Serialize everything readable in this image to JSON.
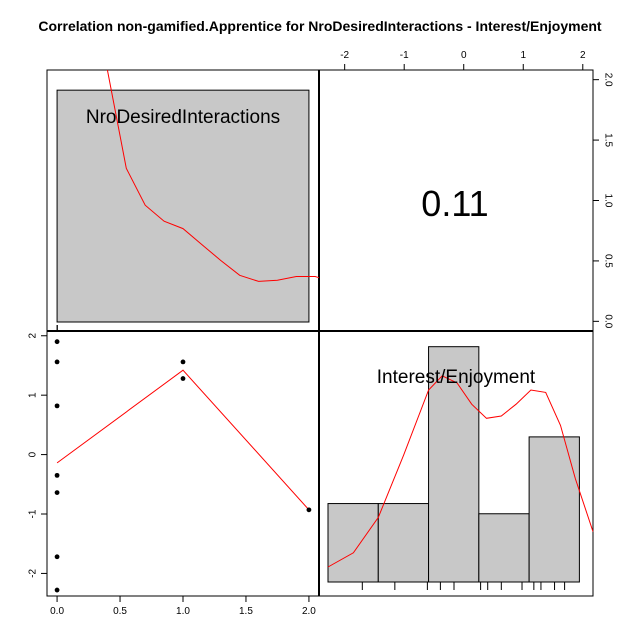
{
  "title": "Correlation non-gamified.Apprentice for NroDesiredInteractions - Interest/Enjoyment",
  "chart_data": {
    "type": "pairs",
    "variables": [
      "NroDesiredInteractions",
      "Interest/Enjoyment"
    ],
    "correlation": "0.11",
    "colors": {
      "bars": "#c8c8c8",
      "curve": "#ff0000",
      "points": "#000000"
    },
    "hist_nro": {
      "breaks": [
        0,
        2
      ],
      "xlim": [
        0,
        2.08
      ],
      "bar_height_fraction": 0.92,
      "density": {
        "x": [
          0.4,
          0.55,
          0.7,
          0.85,
          1.0,
          1.15,
          1.3,
          1.45,
          1.6,
          1.75,
          1.9,
          2.05,
          2.08
        ],
        "y": [
          2.05,
          1.25,
          0.95,
          0.82,
          0.76,
          0.63,
          0.5,
          0.38,
          0.33,
          0.34,
          0.37,
          0.37,
          0.36
        ]
      },
      "density_ylim": [
        0,
        2.05
      ]
    },
    "hist_interest": {
      "breaks": [
        -2.28,
        -1.43,
        -0.58,
        0.27,
        1.12,
        1.97
      ],
      "counts": [
        1,
        1,
        3,
        0.87,
        1.85
      ],
      "ymax": 3.2,
      "density": {
        "x": [
          -2.28,
          -1.85,
          -1.43,
          -1.0,
          -0.58,
          -0.35,
          -0.1,
          0.15,
          0.4,
          0.65,
          0.9,
          1.15,
          1.4,
          1.65,
          1.9,
          2.2
        ],
        "y": [
          0.0,
          0.12,
          0.42,
          0.95,
          1.5,
          1.62,
          1.56,
          1.38,
          1.26,
          1.28,
          1.38,
          1.5,
          1.48,
          1.2,
          0.75,
          0.3
        ]
      },
      "rug": [
        -1.7,
        -1.15,
        -0.6,
        -0.38,
        -0.15,
        0.3,
        0.42,
        0.65,
        1.0,
        1.2,
        1.32,
        1.55,
        1.72
      ],
      "xlim": [
        -2.28,
        2.2
      ]
    },
    "scatter": {
      "points": [
        {
          "x": 0,
          "y": 1.9
        },
        {
          "x": 0,
          "y": 1.56
        },
        {
          "x": 0,
          "y": 0.82
        },
        {
          "x": 0,
          "y": -0.35
        },
        {
          "x": 0,
          "y": -0.64
        },
        {
          "x": 0,
          "y": -1.72
        },
        {
          "x": 0,
          "y": -2.28
        },
        {
          "x": 1,
          "y": 1.56
        },
        {
          "x": 1,
          "y": 1.28
        },
        {
          "x": 2,
          "y": -0.93
        }
      ],
      "smooth": {
        "x": [
          0,
          1,
          2
        ],
        "y": [
          -0.14,
          1.42,
          -0.93
        ]
      },
      "xlim": [
        -0.08,
        2.08
      ],
      "ylim": [
        -2.38,
        2.08
      ]
    },
    "axes": {
      "bottom_ticks": [
        "0.0",
        "0.5",
        "1.0",
        "1.5",
        "2.0"
      ],
      "bottom_values": [
        0,
        0.5,
        1,
        1.5,
        2
      ],
      "left_ticks": [
        "-2",
        "-1",
        "0",
        "1",
        "2"
      ],
      "left_values": [
        -2,
        -1,
        0,
        1,
        2
      ],
      "top_ticks": [
        "-2",
        "-1",
        "0",
        "1",
        "2"
      ],
      "top_values": [
        -2,
        -1,
        0,
        1,
        2
      ],
      "top_xlim": [
        -2.28,
        1.97
      ],
      "right_ticks": [
        "0.0",
        "0.5",
        "1.0",
        "1.5",
        "2.0"
      ],
      "right_values": [
        0,
        0.5,
        1,
        1.5,
        2
      ],
      "right_ylim": [
        -0.08,
        2.08
      ]
    }
  }
}
